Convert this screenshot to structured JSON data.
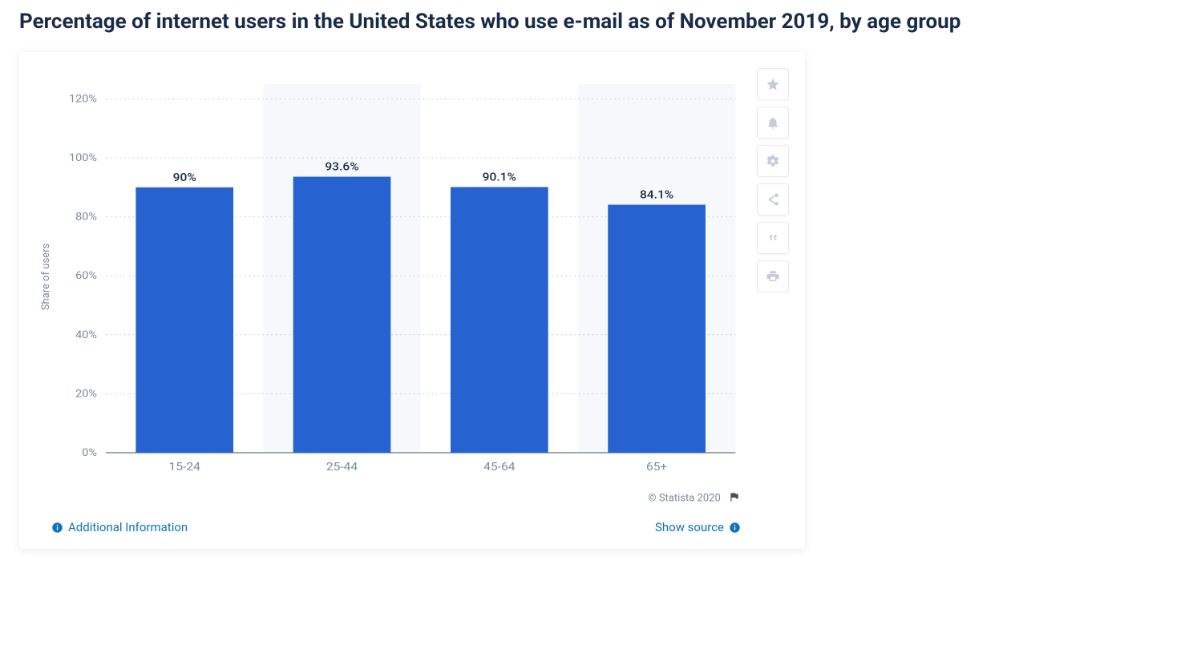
{
  "title": "Percentage of internet users in the United States who use e-mail as of November 2019, by age group",
  "chart": {
    "type": "bar",
    "categories": [
      "15-24",
      "25-44",
      "45-64",
      "65+"
    ],
    "values": [
      90,
      93.6,
      90.1,
      84.1
    ],
    "value_labels": [
      "90%",
      "93.6%",
      "90.1%",
      "84.1%"
    ],
    "bar_color": "#2663d0",
    "ylabel": "Share of users",
    "ylim": [
      0,
      125
    ],
    "ytick_step": 20,
    "ytick_suffix": "%",
    "yticks": [
      0,
      20,
      40,
      60,
      80,
      100,
      120
    ],
    "grid_color": "#cfd6e0",
    "background_band_color": "#f6f8fb",
    "axis_text_color": "#7b8a9e",
    "baseline_color": "#7e8a99",
    "label_fontsize": 14,
    "tick_fontsize": 13,
    "bar_width_ratio": 0.62
  },
  "toolbar": {
    "star": "Favorite",
    "bell": "Alert",
    "gear": "Settings",
    "share": "Share",
    "quote": "Citation",
    "print": "Print"
  },
  "footer": {
    "copyright": "© Statista 2020",
    "additional_info": "Additional Information",
    "show_source": "Show source"
  }
}
